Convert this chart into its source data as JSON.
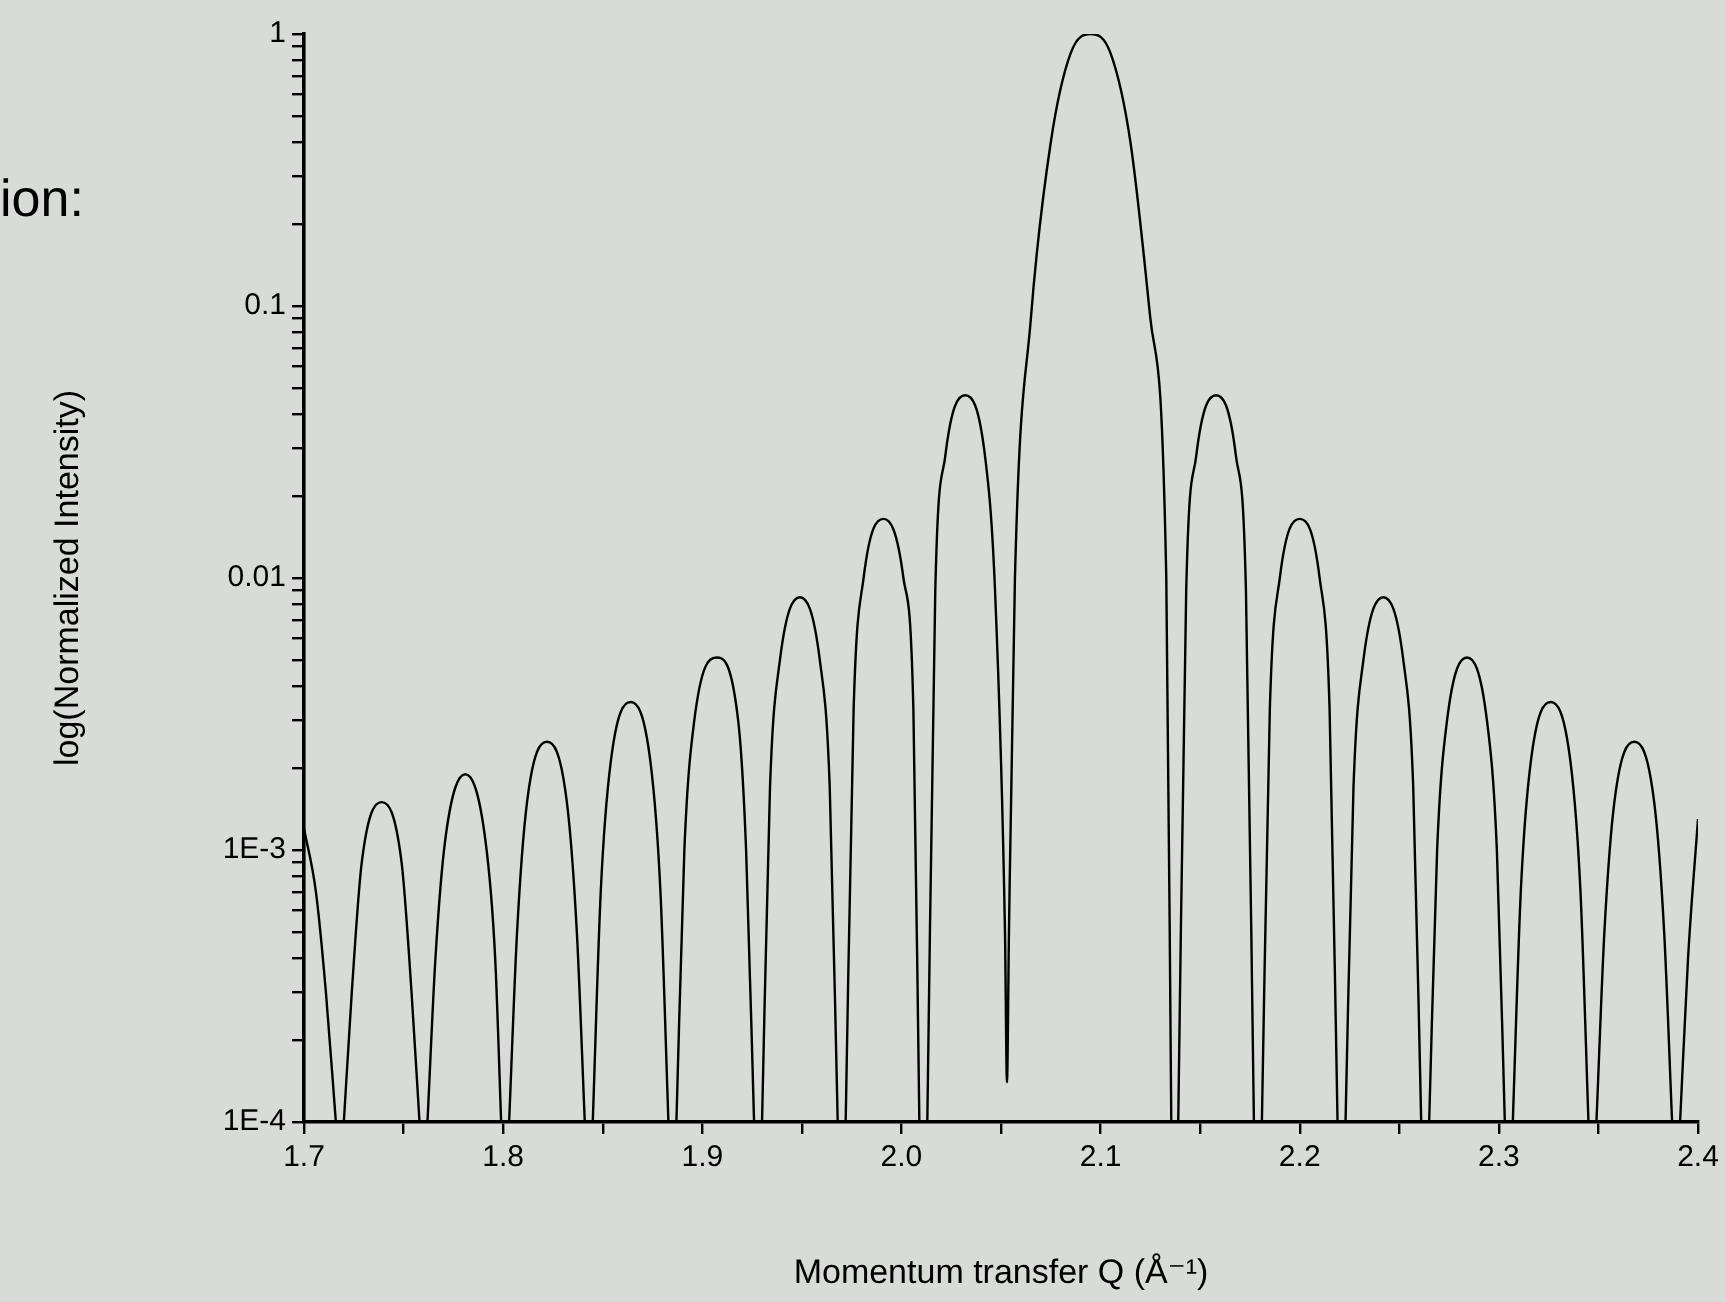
{
  "chart_data": {
    "type": "line",
    "xlabel": "Momentum transfer Q (Å⁻¹)",
    "ylabel": "log(Normalized Intensity)",
    "annotations": [
      "ion:"
    ],
    "log": "y",
    "grid": false,
    "xlim": [
      1.7,
      2.4
    ],
    "ylim": [
      0.0001,
      1
    ],
    "xticks": [
      1.7,
      {
        "value": 1.75,
        "label": null
      },
      1.8,
      {
        "value": 1.85,
        "label": null
      },
      1.9,
      {
        "value": 1.95,
        "label": null
      },
      {
        "value": 2,
        "label": "2.0"
      },
      {
        "value": 2.05,
        "label": null
      },
      2.1,
      {
        "value": 2.15,
        "label": null
      },
      2.2,
      {
        "value": 2.25,
        "label": null
      },
      2.3,
      {
        "value": 2.35,
        "label": null
      },
      2.4
    ],
    "yticks": [
      {
        "value": 0.0001,
        "label": "1E-4"
      },
      {
        "value": 0.0002,
        "label": null
      },
      {
        "value": 0.0003,
        "label": null
      },
      {
        "value": 0.0004,
        "label": null
      },
      {
        "value": 0.0005,
        "label": null
      },
      {
        "value": 0.0006,
        "label": null
      },
      {
        "value": 0.0007,
        "label": null
      },
      {
        "value": 0.0008,
        "label": null
      },
      {
        "value": 0.0009,
        "label": null
      },
      {
        "value": 0.001,
        "label": "1E-3"
      },
      {
        "value": 0.002,
        "label": null
      },
      {
        "value": 0.003,
        "label": null
      },
      {
        "value": 0.004,
        "label": null
      },
      {
        "value": 0.005,
        "label": null
      },
      {
        "value": 0.006,
        "label": null
      },
      {
        "value": 0.007,
        "label": null
      },
      {
        "value": 0.008,
        "label": null
      },
      {
        "value": 0.009,
        "label": null
      },
      0.01,
      {
        "value": 0.02,
        "label": null
      },
      {
        "value": 0.03,
        "label": null
      },
      {
        "value": 0.04,
        "label": null
      },
      {
        "value": 0.05,
        "label": null
      },
      {
        "value": 0.06,
        "label": null
      },
      {
        "value": 0.07,
        "label": null
      },
      {
        "value": 0.08,
        "label": null
      },
      {
        "value": 0.09,
        "label": null
      },
      0.1,
      {
        "value": 0.2,
        "label": null
      },
      {
        "value": 0.3,
        "label": null
      },
      {
        "value": 0.4,
        "label": null
      },
      {
        "value": 0.5,
        "label": null
      },
      {
        "value": 0.6,
        "label": null
      },
      {
        "value": 0.7,
        "label": null
      },
      {
        "value": 0.8,
        "label": null
      },
      {
        "value": 0.9,
        "label": null
      },
      1
    ],
    "x": [
      1.7,
      1.706,
      1.711,
      1.716,
      1.718,
      1.72,
      1.724,
      1.729,
      1.739,
      1.749,
      1.754,
      1.758,
      1.76,
      1.762,
      1.766,
      1.771,
      1.781,
      1.791,
      1.796,
      1.799,
      1.801,
      1.803,
      1.807,
      1.812,
      1.822,
      1.832,
      1.837,
      1.841,
      1.843,
      1.845,
      1.849,
      1.854,
      1.864,
      1.874,
      1.879,
      1.883,
      1.885,
      1.887,
      1.891,
      1.896,
      1.907,
      1.918,
      1.922,
      1.926,
      1.928,
      1.93,
      1.934,
      1.939,
      1.949,
      1.959,
      1.964,
      1.968,
      1.97,
      1.972,
      1.976,
      1.981,
      1.991,
      2.001,
      2.006,
      2.009,
      2.011,
      2.013,
      2.017,
      2.022,
      2.032,
      2.042,
      2.047,
      2.052,
      2.053,
      2.054,
      2.057,
      2.065,
      2.075,
      2.085,
      2.095,
      2.105,
      2.115,
      2.125,
      2.133,
      2.1355,
      2.137,
      2.139,
      2.143,
      2.148,
      2.158,
      2.168,
      2.173,
      2.177,
      2.179,
      2.181,
      2.185,
      2.19,
      2.2,
      2.21,
      2.215,
      2.219,
      2.221,
      2.223,
      2.227,
      2.232,
      2.242,
      2.252,
      2.257,
      2.261,
      2.263,
      2.265,
      2.269,
      2.274,
      2.284,
      2.294,
      2.299,
      2.303,
      2.305,
      2.307,
      2.311,
      2.316,
      2.326,
      2.336,
      2.341,
      2.345,
      2.347,
      2.349,
      2.353,
      2.358,
      2.368,
      2.378,
      2.383,
      2.387,
      2.389,
      2.391,
      2.395,
      2.4
    ],
    "series": [
      {
        "color": "#000000",
        "values": [
          0.0012,
          0.0007,
          0.0003,
          0.0001,
          null,
          0.0001,
          0.0003,
          0.0009,
          0.0015,
          0.0009,
          0.0003,
          0.0001,
          null,
          0.0001,
          0.0004,
          0.0011,
          0.0019,
          0.0011,
          0.0004,
          0.0001,
          null,
          0.0001,
          0.0005,
          0.0015,
          0.0025,
          0.0015,
          0.0005,
          0.0001,
          null,
          0.0001,
          0.0007,
          0.0021,
          0.0035,
          0.0021,
          0.0007,
          0.0001,
          null,
          0.0001,
          0.001,
          0.003,
          0.0051,
          0.003,
          0.001,
          0.0001,
          null,
          0.0001,
          0.0017,
          0.005,
          0.0085,
          0.005,
          0.0017,
          0.0001,
          null,
          0.0001,
          0.0033,
          0.01,
          0.0165,
          0.01,
          0.0033,
          0.0001,
          null,
          0.0001,
          0.009,
          0.028,
          0.047,
          0.028,
          0.009,
          0.0005,
          0.00014,
          0.0005,
          0.01,
          0.09,
          0.4,
          0.85,
          1,
          0.85,
          0.4,
          0.09,
          0.01,
          0.0001,
          null,
          0.0001,
          0.009,
          0.028,
          0.047,
          0.028,
          0.009,
          0.0001,
          null,
          0.0001,
          0.0033,
          0.01,
          0.0165,
          0.01,
          0.0033,
          0.0001,
          null,
          0.0001,
          0.0017,
          0.005,
          0.0085,
          0.005,
          0.0017,
          0.0001,
          null,
          0.0001,
          0.001,
          0.003,
          0.0051,
          0.003,
          0.001,
          0.0001,
          null,
          0.0001,
          0.0007,
          0.0021,
          0.0035,
          0.0021,
          0.0007,
          0.0001,
          null,
          0.0001,
          0.0005,
          0.0015,
          0.0025,
          0.0015,
          0.0005,
          0.0001,
          null,
          0.0001,
          0.0004,
          0.0013
        ]
      }
    ]
  }
}
